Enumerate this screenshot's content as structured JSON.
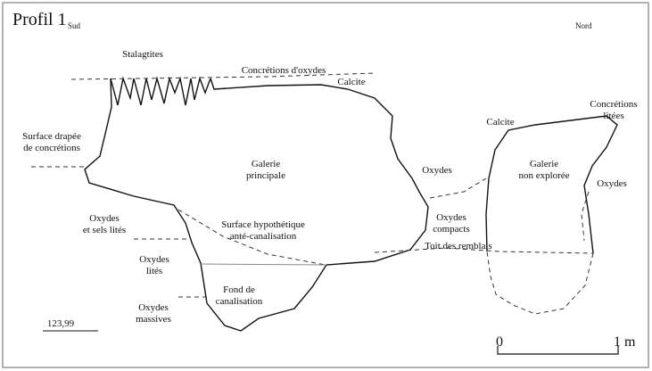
{
  "title": "Profil 1",
  "orientation": {
    "left": "Sud",
    "right": "Nord"
  },
  "labels": [
    {
      "lines": [
        "Stalagtites"
      ]
    },
    {
      "lines": [
        "Concrétions d'oxydes"
      ]
    },
    {
      "lines": [
        "Calcite"
      ]
    },
    {
      "lines": [
        "Surface drapée",
        "de concrétions"
      ]
    },
    {
      "lines": [
        "Galerie",
        "principale"
      ]
    },
    {
      "lines": [
        "Oxydes"
      ]
    },
    {
      "lines": [
        "Calcite"
      ]
    },
    {
      "lines": [
        "Concrétions",
        "litées"
      ]
    },
    {
      "lines": [
        "Galerie",
        "non explorée"
      ]
    },
    {
      "lines": [
        "Oxydes"
      ]
    },
    {
      "lines": [
        "Oxydes",
        "et sels lités"
      ]
    },
    {
      "lines": [
        "Surface hypothétique",
        "anté-canalisation"
      ]
    },
    {
      "lines": [
        "Oxydes",
        "compacts"
      ]
    },
    {
      "lines": [
        "Toit des remblais"
      ]
    },
    {
      "lines": [
        "Oxydes",
        "lités"
      ]
    },
    {
      "lines": [
        "Fond de",
        "canalisation"
      ]
    },
    {
      "lines": [
        "Oxydes",
        "massives"
      ]
    }
  ],
  "elevation": "123,99",
  "scale": {
    "start": "0",
    "end": "1 m"
  }
}
